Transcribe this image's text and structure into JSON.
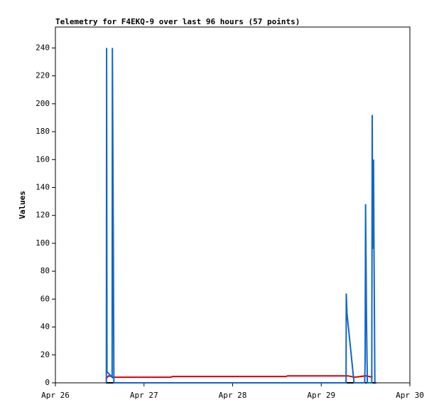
{
  "chart_data": {
    "type": "line",
    "title": "Telemetry for F4EKQ-9 over last 96 hours (57 points)",
    "y_label": "Values",
    "xlim": [
      0,
      4
    ],
    "xticks": [
      {
        "value": 0,
        "label": "Apr 26"
      },
      {
        "value": 1,
        "label": "Apr 27"
      },
      {
        "value": 2,
        "label": "Apr 28"
      },
      {
        "value": 3,
        "label": "Apr 29"
      },
      {
        "value": 4,
        "label": "Apr 30"
      }
    ],
    "ylim": [
      0,
      255
    ],
    "yticks": [
      0,
      20,
      40,
      60,
      80,
      100,
      120,
      140,
      160,
      180,
      200,
      220,
      240
    ],
    "series": [
      {
        "color": "#000000",
        "x": [
          0.57,
          3.62
        ],
        "values": [
          0,
          0
        ]
      },
      {
        "color": "#dd0000",
        "x": [
          0.57,
          0.6,
          0.66,
          1.3,
          1.32,
          2.6,
          2.62,
          3.3,
          3.38,
          3.5,
          3.58
        ],
        "values": [
          3,
          5,
          4,
          4,
          4.5,
          4.5,
          5,
          5,
          4,
          5,
          4
        ]
      },
      {
        "color": "#1166cc",
        "x": [
          0.575,
          0.578,
          0.582,
          0.64,
          0.643,
          0.652,
          0.66,
          3.28,
          3.282,
          3.29,
          3.37,
          3.49,
          3.495,
          3.5,
          3.51,
          3.52,
          3.57,
          3.575,
          3.58,
          3.59,
          3.595,
          3.6,
          3.605
        ],
        "values": [
          0,
          240,
          8,
          4,
          240,
          120,
          0,
          0,
          64,
          50,
          0,
          0,
          16,
          128,
          48,
          0,
          0,
          192,
          96,
          160,
          96,
          48,
          0
        ]
      }
    ]
  }
}
